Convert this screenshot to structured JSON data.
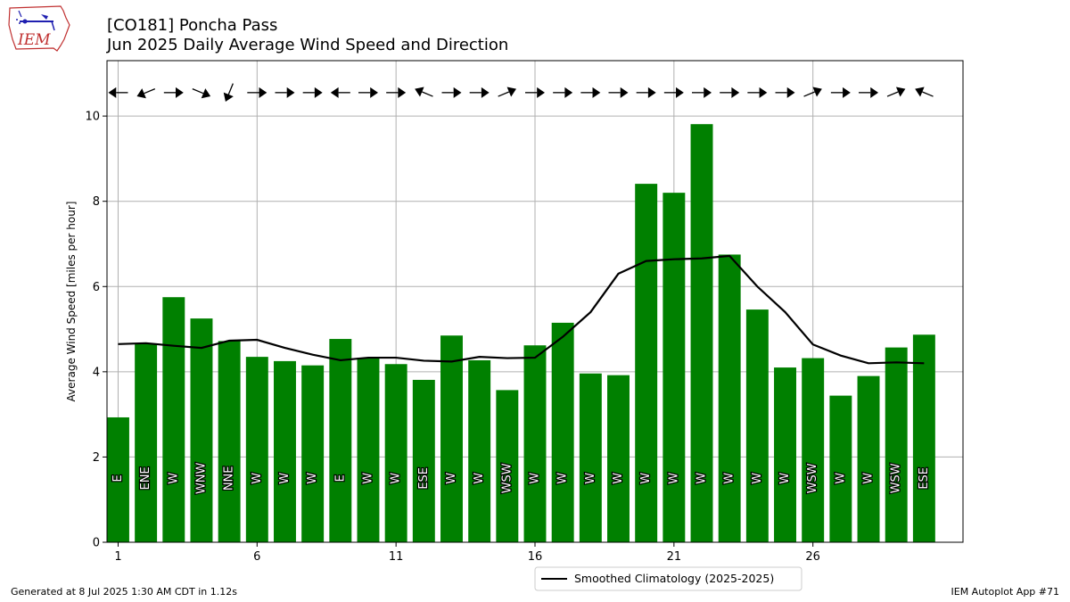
{
  "header": {
    "title_line1": "[CO181] Poncha Pass",
    "title_line2": "Jun 2025 Daily Average Wind Speed and Direction"
  },
  "logo": {
    "text": "IEM",
    "icon": "iem-iowa-logo"
  },
  "footer": {
    "left": "Generated at 8 Jul 2025 1:30 AM CDT in 1.12s",
    "right": "IEM Autoplot App #71"
  },
  "chart_data": {
    "type": "bar",
    "ylabel": "Average Wind Speed [miles per hour]",
    "xlabel": "",
    "ylim": [
      0,
      11.3
    ],
    "xlim": [
      0.6,
      31.4
    ],
    "yticks": [
      0,
      2,
      4,
      6,
      8,
      10
    ],
    "xticks": [
      1,
      6,
      11,
      16,
      21,
      26
    ],
    "grid": true,
    "legend_position": "bottom-center",
    "colors": {
      "bars": "#008000",
      "climo_line": "#000000",
      "grid": "#b0b0b0"
    },
    "days": [
      1,
      2,
      3,
      4,
      5,
      6,
      7,
      8,
      9,
      10,
      11,
      12,
      13,
      14,
      15,
      16,
      17,
      18,
      19,
      20,
      21,
      22,
      23,
      24,
      25,
      26,
      27,
      28,
      29,
      30
    ],
    "values": [
      2.93,
      4.65,
      5.75,
      5.25,
      4.72,
      4.35,
      4.25,
      4.15,
      4.77,
      4.33,
      4.18,
      3.81,
      4.85,
      4.27,
      3.57,
      4.62,
      5.15,
      3.96,
      3.92,
      8.41,
      8.2,
      9.81,
      6.75,
      5.46,
      4.1,
      4.32,
      3.44,
      3.9,
      4.57,
      4.87
    ],
    "directions": [
      "E",
      "ENE",
      "W",
      "WNW",
      "NNE",
      "W",
      "W",
      "W",
      "E",
      "W",
      "W",
      "ESE",
      "W",
      "W",
      "WSW",
      "W",
      "W",
      "W",
      "W",
      "W",
      "W",
      "W",
      "W",
      "W",
      "W",
      "WSW",
      "W",
      "W",
      "WSW",
      "ESE"
    ],
    "series": [
      {
        "name": "Smoothed Climatology (2025-2025)",
        "type": "line",
        "values": [
          4.65,
          4.67,
          4.61,
          4.56,
          4.73,
          4.75,
          4.56,
          4.4,
          4.27,
          4.33,
          4.33,
          4.26,
          4.24,
          4.35,
          4.32,
          4.33,
          4.82,
          5.4,
          6.3,
          6.6,
          6.64,
          6.66,
          6.72,
          6.0,
          5.4,
          4.64,
          4.38,
          4.2,
          4.22,
          4.2
        ]
      }
    ]
  }
}
